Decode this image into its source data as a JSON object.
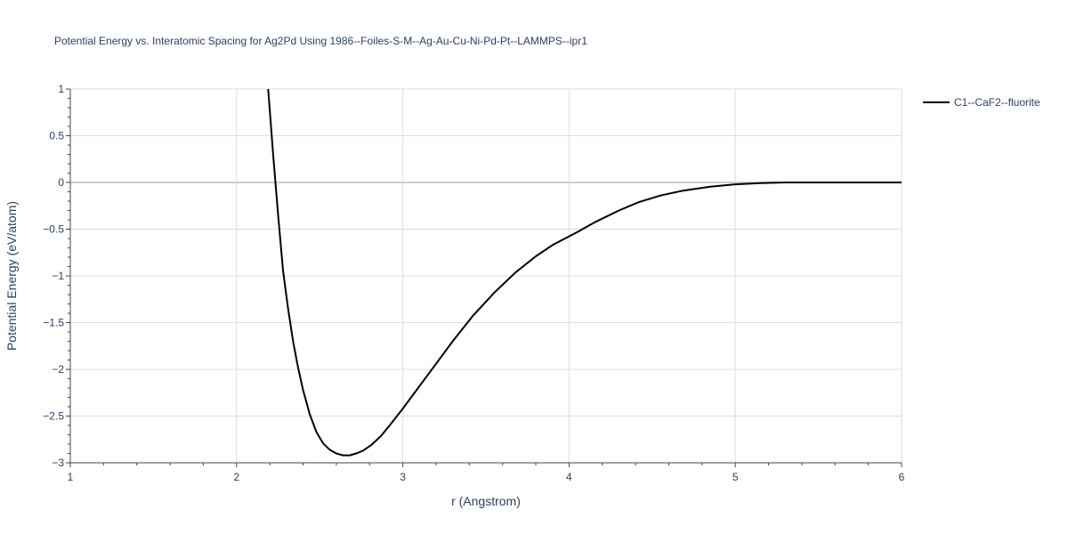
{
  "chart_data": {
    "type": "line",
    "title": "Potential Energy vs. Interatomic Spacing for Ag2Pd Using 1986--Foiles-S-M--Ag-Au-Cu-Ni-Pd-Pt--LAMMPS--ipr1",
    "xlabel": "r (Angstrom)",
    "ylabel": "Potential Energy (eV/atom)",
    "xlim": [
      1,
      6
    ],
    "ylim": [
      -3,
      1
    ],
    "x_ticks": [
      1,
      2,
      3,
      4,
      5,
      6
    ],
    "x_tick_labels": [
      "1",
      "2",
      "3",
      "4",
      "5",
      "6"
    ],
    "y_ticks": [
      1,
      0.5,
      0,
      -0.5,
      -1,
      -1.5,
      -2,
      -2.5,
      -3
    ],
    "y_tick_labels": [
      "1",
      "0.5",
      "0",
      "−0.5",
      "−1",
      "−1.5",
      "−2",
      "−2.5",
      "−3"
    ],
    "grid": true,
    "legend_position": "top-right",
    "colors": {
      "line": "#000000",
      "grid": "#dddddd",
      "zeroline": "#cccccc",
      "text": "#2a3f5f"
    },
    "series": [
      {
        "name": "C1--CaF2--fluorite",
        "x": [
          2.19,
          2.22,
          2.25,
          2.28,
          2.31,
          2.34,
          2.37,
          2.4,
          2.44,
          2.48,
          2.52,
          2.56,
          2.6,
          2.64,
          2.68,
          2.72,
          2.76,
          2.81,
          2.87,
          2.93,
          3.0,
          3.1,
          3.2,
          3.3,
          3.42,
          3.55,
          3.68,
          3.8,
          3.9,
          4.05,
          4.15,
          4.3,
          4.42,
          4.55,
          4.68,
          4.85,
          5.0,
          5.15,
          5.3,
          5.5,
          6.0
        ],
        "y": [
          1.0,
          0.3,
          -0.35,
          -0.95,
          -1.35,
          -1.7,
          -1.98,
          -2.22,
          -2.48,
          -2.67,
          -2.79,
          -2.86,
          -2.9,
          -2.92,
          -2.92,
          -2.9,
          -2.87,
          -2.81,
          -2.71,
          -2.58,
          -2.42,
          -2.18,
          -1.94,
          -1.7,
          -1.43,
          -1.18,
          -0.96,
          -0.79,
          -0.67,
          -0.53,
          -0.43,
          -0.3,
          -0.21,
          -0.14,
          -0.09,
          -0.045,
          -0.02,
          -0.008,
          0.0,
          0.0,
          0.0
        ]
      }
    ]
  }
}
